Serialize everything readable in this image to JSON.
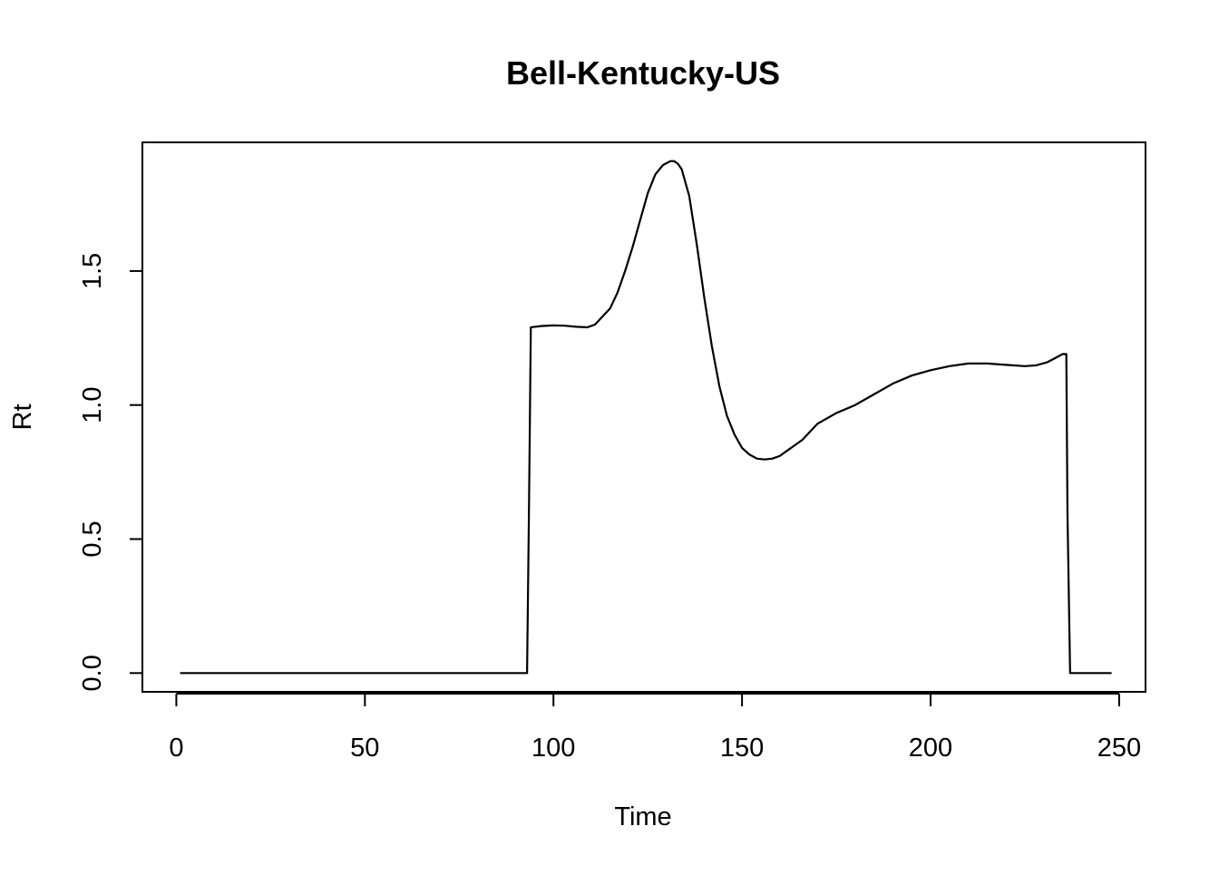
{
  "chart_data": {
    "type": "line",
    "title": "Bell-Kentucky-US",
    "xlabel": "Time",
    "ylabel": "Rt",
    "xlim": [
      -9,
      257
    ],
    "ylim": [
      -0.07,
      1.98
    ],
    "x_ticks": [
      0,
      50,
      100,
      150,
      200,
      250
    ],
    "x_tick_labels": [
      "0",
      "50",
      "100",
      "150",
      "200",
      "250"
    ],
    "y_ticks": [
      0,
      0.5,
      1,
      1.5
    ],
    "y_tick_labels": [
      "0.0",
      "0.5",
      "1.0",
      "1.5"
    ],
    "grid": false,
    "legend": "none",
    "colors": {
      "line": "#000000",
      "frame": "#000000",
      "background": "#ffffff"
    },
    "series": [
      {
        "x": [
          1,
          10,
          20,
          30,
          40,
          50,
          60,
          70,
          80,
          90,
          93,
          93.5,
          94,
          97,
          100,
          103,
          106,
          109,
          111,
          113,
          115,
          117,
          119,
          121,
          123,
          125,
          127,
          129,
          131,
          132,
          133,
          134,
          136,
          138,
          140,
          142,
          144,
          146,
          148,
          150,
          152,
          154,
          156,
          158,
          160,
          162,
          164,
          166,
          168,
          170,
          175,
          180,
          185,
          190,
          195,
          200,
          205,
          210,
          215,
          220,
          225,
          228,
          231,
          233,
          235,
          236,
          236.3,
          237,
          237.5,
          240,
          245,
          248
        ],
        "y": [
          0,
          0,
          0,
          0,
          0,
          0,
          0,
          0,
          0,
          0,
          0,
          0.6,
          1.29,
          1.295,
          1.297,
          1.296,
          1.292,
          1.29,
          1.3,
          1.33,
          1.36,
          1.42,
          1.5,
          1.59,
          1.69,
          1.79,
          1.86,
          1.895,
          1.91,
          1.91,
          1.9,
          1.88,
          1.78,
          1.6,
          1.4,
          1.22,
          1.07,
          0.96,
          0.89,
          0.84,
          0.815,
          0.8,
          0.797,
          0.8,
          0.81,
          0.83,
          0.85,
          0.87,
          0.9,
          0.93,
          0.97,
          1.0,
          1.04,
          1.08,
          1.11,
          1.13,
          1.145,
          1.155,
          1.155,
          1.15,
          1.145,
          1.148,
          1.16,
          1.175,
          1.19,
          1.19,
          0.6,
          0.0,
          0,
          0,
          0,
          0
        ]
      }
    ]
  }
}
